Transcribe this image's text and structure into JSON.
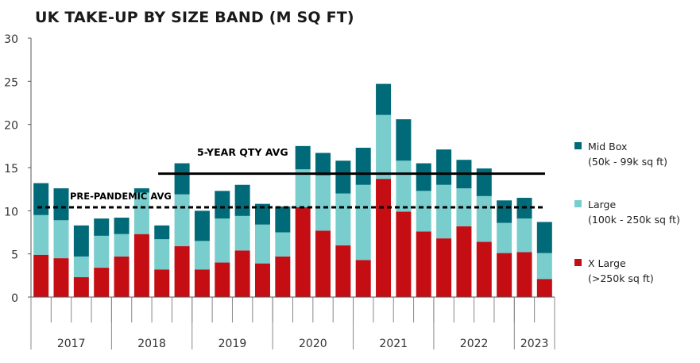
{
  "title": "UK TAKE-UP BY SIZE BAND (M SQ FT)",
  "colors": {
    "mid_box": "#006a78",
    "large": "#79cdcd",
    "x_large": "#c40e14",
    "five_year_line": "#000000",
    "pre_pandemic_line": "#000000",
    "axis": "#555555",
    "grid": "#cccccc"
  },
  "legend": [
    {
      "label": "Mid Box",
      "sub": "(50k - 99k sq ft)"
    },
    {
      "label": "Large",
      "sub": "(100k - 250k sq ft)"
    },
    {
      "label": "X Large",
      "sub": "(>250k sq ft)"
    }
  ],
  "chart_data": {
    "type": "bar",
    "stacked": true,
    "title": "UK TAKE-UP BY SIZE BAND (M SQ FT)",
    "ylim": [
      0,
      30
    ],
    "yticks": [
      "0",
      "5",
      "10",
      "15",
      "20",
      "25",
      "30"
    ],
    "ytick_values": [
      0,
      5,
      10,
      15,
      20,
      25,
      30
    ],
    "grid": false,
    "legend_position": "right",
    "year_groups": [
      {
        "label": "2017",
        "quarters": 4
      },
      {
        "label": "2018",
        "quarters": 4
      },
      {
        "label": "2019",
        "quarters": 4
      },
      {
        "label": "2020",
        "quarters": 4
      },
      {
        "label": "2021",
        "quarters": 4
      },
      {
        "label": "2022",
        "quarters": 4
      },
      {
        "label": "2023",
        "quarters": 2
      }
    ],
    "series": [
      {
        "name": "X Large",
        "legend_sub": "(>250k sq ft)",
        "color_key": "x_large",
        "values": [
          4.9,
          4.5,
          2.3,
          3.4,
          4.7,
          7.3,
          3.2,
          5.9,
          3.2,
          4.0,
          5.4,
          3.9,
          4.7,
          10.4,
          7.7,
          6.0,
          4.3,
          13.7,
          9.9,
          7.6,
          6.8,
          8.2,
          6.4,
          5.1,
          5.2,
          2.1
        ]
      },
      {
        "name": "Large",
        "legend_sub": "(100k - 250k sq ft)",
        "color_key": "large",
        "values": [
          4.6,
          4.4,
          2.4,
          3.7,
          2.6,
          4.8,
          3.5,
          6.0,
          3.3,
          5.1,
          4.0,
          4.5,
          2.8,
          4.4,
          6.4,
          6.0,
          8.7,
          7.4,
          5.9,
          4.7,
          6.2,
          4.4,
          5.3,
          3.5,
          3.9,
          3.0
        ]
      },
      {
        "name": "Mid Box",
        "legend_sub": "(50k - 99k sq ft)",
        "color_key": "mid_box",
        "values": [
          3.7,
          3.7,
          3.6,
          2.0,
          1.9,
          0.5,
          1.6,
          3.6,
          3.5,
          3.2,
          3.6,
          2.4,
          3.0,
          2.7,
          2.6,
          3.8,
          4.3,
          3.6,
          4.8,
          3.2,
          4.1,
          3.3,
          3.2,
          2.6,
          2.4,
          3.6
        ]
      }
    ],
    "reference_lines": [
      {
        "label": "5-YEAR QTY AVG",
        "value": 14.3,
        "style": "solid",
        "from_index": 6,
        "to_index": 25
      },
      {
        "label": "PRE-PANDEMIC AVG",
        "value": 10.4,
        "style": "dashed",
        "from_index": 0,
        "to_index": 25
      }
    ]
  }
}
